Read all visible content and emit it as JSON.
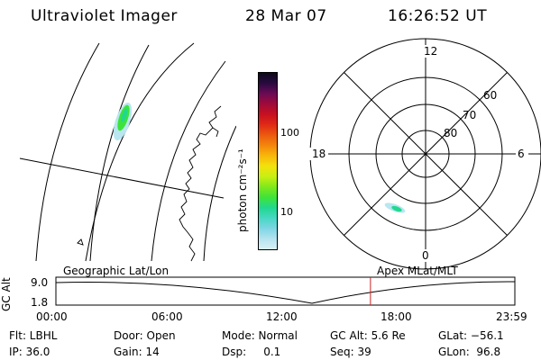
{
  "header": {
    "instrument": "Ultraviolet Imager",
    "date": "28 Mar 07",
    "time": "16:26:52 UT"
  },
  "colorbar": {
    "unit_label": "photon cm⁻²s⁻¹",
    "ticks": [
      "100",
      "10"
    ],
    "colors": [
      "#d9f0f7",
      "#b5e3ee",
      "#7fd6e4",
      "#46d8c4",
      "#21d88f",
      "#3ee33a",
      "#7fe81c",
      "#c8ef12",
      "#f3e20c",
      "#f8b70a",
      "#f4870b",
      "#ec5a10",
      "#e02a16",
      "#c81020",
      "#a00a3a",
      "#6a0a55",
      "#2a0a40",
      "#0a0a1a"
    ]
  },
  "polar_plot": {
    "mlt_labels": [
      "12",
      "18",
      "6",
      "0"
    ],
    "mlat_labels": [
      "60",
      "70",
      "80"
    ]
  },
  "timeline": {
    "axis_title": "GC Alt",
    "y_ticks": [
      "9.0",
      "1.8"
    ],
    "left_title": "Geographic Lat/Lon",
    "right_title": "Apex MLat/MLT",
    "x_ticks": [
      "00:00",
      "06:00",
      "12:00",
      "18:00",
      "23:59"
    ],
    "current_time_fraction": 0.6854,
    "marker_color": "#cc2222"
  },
  "status": {
    "flt": "Flt: LBHL",
    "door": "Door: Open",
    "mode": "Mode: Normal",
    "gc_alt": "GC Alt: 5.6 Re",
    "glat": "GLat: −56.1",
    "ip": "IP: 36.0",
    "gain": "Gain: 14",
    "dsp": "Dsp:     0.1",
    "seq": "Seq: 39",
    "glon": "GLon:  96.8"
  }
}
